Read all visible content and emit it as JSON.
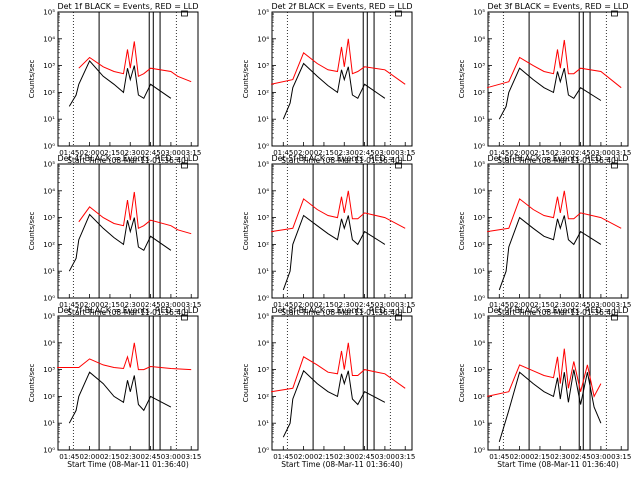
{
  "colors": {
    "events": "#000000",
    "lld": "#ff0000",
    "axis": "#000000",
    "background": "#ffffff"
  },
  "chart_data": [
    {
      "type": "line",
      "title": "Det 1f BLACK = Events, RED = LLD",
      "xlabel": "Start Time (08-Mar-11 01:36:40)",
      "ylabel": "Counts/sec",
      "yscale": "log",
      "ylim": [
        1,
        100000
      ],
      "xlim": [
        "01:36:40",
        "03:20:00"
      ],
      "x_tick_labels": [
        "01:45",
        "02:00",
        "02:15",
        "02:30",
        "02:45",
        "03:00",
        "03:15"
      ],
      "y_tick_labels": [
        "10^0",
        "10^1",
        "10^2",
        "10^3",
        "10^4",
        "10^5"
      ],
      "legend": "title text",
      "series": [
        {
          "name": "Events",
          "x": [
            "01:45",
            "01:50",
            "01:52",
            "02:00",
            "02:10",
            "02:18",
            "02:25",
            "02:28",
            "02:30",
            "02:33",
            "02:36",
            "02:40",
            "02:45",
            "03:00"
          ],
          "values": [
            30,
            80,
            200,
            1500,
            400,
            200,
            100,
            800,
            300,
            1000,
            80,
            60,
            200,
            60
          ]
        },
        {
          "name": "LLD",
          "x": [
            "01:52",
            "02:00",
            "02:10",
            "02:18",
            "02:25",
            "02:28",
            "02:30",
            "02:33",
            "02:36",
            "02:40",
            "02:45",
            "03:00",
            "03:05",
            "03:15"
          ],
          "values": [
            800,
            2000,
            900,
            600,
            500,
            4000,
            800,
            8000,
            400,
            500,
            800,
            600,
            400,
            250
          ]
        }
      ]
    },
    {
      "type": "line",
      "title": "Det 2f BLACK = Events, RED = LLD",
      "xlabel": "Start Time (08-Mar-11 01:36:40)",
      "ylabel": "Counts/sec",
      "yscale": "log",
      "ylim": [
        1,
        100000
      ],
      "xlim": [
        "01:36:40",
        "03:20:00"
      ],
      "x_tick_labels": [
        "01:45",
        "02:00",
        "02:15",
        "02:30",
        "02:45",
        "03:00",
        "03:15"
      ],
      "y_tick_labels": [
        "10^0",
        "10^1",
        "10^2",
        "10^3",
        "10^4",
        "10^5"
      ],
      "legend": "title text",
      "series": [
        {
          "name": "Events",
          "x": [
            "01:45",
            "01:50",
            "01:52",
            "02:00",
            "02:10",
            "02:18",
            "02:25",
            "02:28",
            "02:30",
            "02:33",
            "02:36",
            "02:40",
            "02:45",
            "03:00"
          ],
          "values": [
            10,
            40,
            150,
            1200,
            400,
            180,
            100,
            700,
            300,
            900,
            80,
            60,
            200,
            60
          ]
        },
        {
          "name": "LLD",
          "x": [
            "01:36",
            "01:52",
            "02:00",
            "02:10",
            "02:18",
            "02:25",
            "02:28",
            "02:30",
            "02:33",
            "02:36",
            "02:40",
            "02:45",
            "03:00",
            "03:15"
          ],
          "values": [
            200,
            300,
            3000,
            1200,
            700,
            600,
            5000,
            900,
            10000,
            500,
            600,
            900,
            700,
            200
          ]
        }
      ]
    },
    {
      "type": "line",
      "title": "Det 3f BLACK = Events, RED = LLD",
      "xlabel": "Start Time (08-Mar-11 01:36:40)",
      "ylabel": "Counts/sec",
      "yscale": "log",
      "ylim": [
        1,
        100000
      ],
      "xlim": [
        "01:36:40",
        "03:20:00"
      ],
      "x_tick_labels": [
        "01:45",
        "02:00",
        "02:15",
        "02:30",
        "02:45",
        "03:00",
        "03:15"
      ],
      "y_tick_labels": [
        "10^0",
        "10^1",
        "10^2",
        "10^3",
        "10^4",
        "10^5"
      ],
      "legend": "title text",
      "series": [
        {
          "name": "Events",
          "x": [
            "01:45",
            "01:50",
            "01:52",
            "02:00",
            "02:10",
            "02:18",
            "02:25",
            "02:28",
            "02:30",
            "02:33",
            "02:36",
            "02:40",
            "02:45",
            "03:00"
          ],
          "values": [
            10,
            30,
            100,
            800,
            300,
            150,
            100,
            600,
            250,
            800,
            80,
            60,
            150,
            50
          ]
        },
        {
          "name": "LLD",
          "x": [
            "01:36",
            "01:52",
            "02:00",
            "02:10",
            "02:18",
            "02:25",
            "02:28",
            "02:30",
            "02:33",
            "02:36",
            "02:40",
            "02:45",
            "03:00",
            "03:15"
          ],
          "values": [
            150,
            250,
            2000,
            1000,
            600,
            500,
            4000,
            800,
            9000,
            500,
            500,
            800,
            600,
            150
          ]
        }
      ]
    },
    {
      "type": "line",
      "title": "Det 4f BLACK = Events, RED = LLD",
      "xlabel": "Start Time (08-Mar-11 01:36:40)",
      "ylabel": "Counts/sec",
      "yscale": "log",
      "ylim": [
        1,
        100000
      ],
      "xlim": [
        "01:36:40",
        "03:20:00"
      ],
      "x_tick_labels": [
        "01:45",
        "02:00",
        "02:15",
        "02:30",
        "02:45",
        "03:00",
        "03:15"
      ],
      "y_tick_labels": [
        "10^0",
        "10^1",
        "10^2",
        "10^3",
        "10^4",
        "10^5"
      ],
      "legend": "title text",
      "series": [
        {
          "name": "Events",
          "x": [
            "01:45",
            "01:50",
            "01:52",
            "02:00",
            "02:10",
            "02:18",
            "02:25",
            "02:28",
            "02:30",
            "02:33",
            "02:36",
            "02:40",
            "02:45",
            "03:00"
          ],
          "values": [
            10,
            30,
            150,
            1300,
            400,
            180,
            100,
            800,
            300,
            1000,
            80,
            60,
            200,
            60
          ]
        },
        {
          "name": "LLD",
          "x": [
            "01:52",
            "02:00",
            "02:10",
            "02:18",
            "02:25",
            "02:28",
            "02:30",
            "02:33",
            "02:36",
            "02:40",
            "02:45",
            "03:00",
            "03:05",
            "03:15"
          ],
          "values": [
            700,
            2500,
            1000,
            600,
            500,
            4500,
            800,
            9000,
            400,
            500,
            800,
            500,
            350,
            250
          ]
        }
      ]
    },
    {
      "type": "line",
      "title": "Det 5f BLACK = Events, RED = LLD",
      "xlabel": "Start Time (08-Mar-11 01:36:40)",
      "ylabel": "Counts/sec",
      "yscale": "log",
      "ylim": [
        1,
        100000
      ],
      "xlim": [
        "01:36:40",
        "03:20:00"
      ],
      "x_tick_labels": [
        "01:45",
        "02:00",
        "02:15",
        "02:30",
        "02:45",
        "03:00",
        "03:15"
      ],
      "y_tick_labels": [
        "10^0",
        "10^1",
        "10^2",
        "10^3",
        "10^4",
        "10^5"
      ],
      "legend": "title text",
      "series": [
        {
          "name": "Events",
          "x": [
            "01:45",
            "01:50",
            "01:52",
            "02:00",
            "02:10",
            "02:18",
            "02:25",
            "02:28",
            "02:30",
            "02:33",
            "02:36",
            "02:40",
            "02:45",
            "03:00"
          ],
          "values": [
            2,
            10,
            100,
            1200,
            500,
            250,
            150,
            900,
            400,
            1200,
            150,
            100,
            300,
            100
          ]
        },
        {
          "name": "LLD",
          "x": [
            "01:36",
            "01:52",
            "02:00",
            "02:10",
            "02:18",
            "02:25",
            "02:28",
            "02:30",
            "02:33",
            "02:36",
            "02:40",
            "02:45",
            "03:00",
            "03:15"
          ],
          "values": [
            300,
            400,
            5000,
            2000,
            1200,
            1000,
            6000,
            1500,
            10000,
            900,
            900,
            1500,
            1000,
            400
          ]
        }
      ]
    },
    {
      "type": "line",
      "title": "Det 6f BLACK = Events, RED = LLD",
      "xlabel": "Start Time (08-Mar-11 01:36:40)",
      "ylabel": "Counts/sec",
      "yscale": "log",
      "ylim": [
        1,
        100000
      ],
      "xlim": [
        "01:36:40",
        "03:20:00"
      ],
      "x_tick_labels": [
        "01:45",
        "02:00",
        "02:15",
        "02:30",
        "02:45",
        "03:00",
        "03:15"
      ],
      "y_tick_labels": [
        "10^0",
        "10^1",
        "10^2",
        "10^3",
        "10^4",
        "10^5"
      ],
      "legend": "title text",
      "series": [
        {
          "name": "Events",
          "x": [
            "01:45",
            "01:50",
            "01:52",
            "02:00",
            "02:10",
            "02:18",
            "02:25",
            "02:28",
            "02:30",
            "02:33",
            "02:36",
            "02:40",
            "02:45",
            "03:00"
          ],
          "values": [
            2,
            10,
            80,
            1000,
            400,
            200,
            150,
            900,
            400,
            1200,
            150,
            100,
            300,
            100
          ]
        },
        {
          "name": "LLD",
          "x": [
            "01:36",
            "01:52",
            "02:00",
            "02:10",
            "02:18",
            "02:25",
            "02:28",
            "02:30",
            "02:33",
            "02:36",
            "02:40",
            "02:45",
            "03:00",
            "03:15"
          ],
          "values": [
            300,
            400,
            5000,
            2000,
            1200,
            1000,
            6000,
            1500,
            10000,
            900,
            900,
            1500,
            1000,
            400
          ]
        }
      ]
    },
    {
      "type": "line",
      "title": "Det 7f BLACK = Events, RED = LLD",
      "xlabel": "Start Time (08-Mar-11 01:36:40)",
      "ylabel": "Counts/sec",
      "yscale": "log",
      "ylim": [
        1,
        100000
      ],
      "xlim": [
        "01:36:40",
        "03:20:00"
      ],
      "x_tick_labels": [
        "01:45",
        "02:00",
        "02:15",
        "02:30",
        "02:45",
        "03:00",
        "03:15"
      ],
      "y_tick_labels": [
        "10^0",
        "10^1",
        "10^2",
        "10^3",
        "10^4",
        "10^5"
      ],
      "legend": "title text",
      "series": [
        {
          "name": "Events",
          "x": [
            "01:45",
            "01:50",
            "01:52",
            "02:00",
            "02:10",
            "02:18",
            "02:25",
            "02:28",
            "02:30",
            "02:33",
            "02:36",
            "02:40",
            "02:45",
            "03:00"
          ],
          "values": [
            10,
            30,
            100,
            800,
            300,
            100,
            60,
            400,
            150,
            600,
            50,
            30,
            100,
            40
          ]
        },
        {
          "name": "LLD",
          "x": [
            "01:36",
            "01:52",
            "02:00",
            "02:10",
            "02:18",
            "02:25",
            "02:28",
            "02:30",
            "02:33",
            "02:36",
            "02:40",
            "02:45",
            "03:00",
            "03:15"
          ],
          "values": [
            1200,
            1200,
            2500,
            1500,
            1200,
            1100,
            3000,
            1200,
            10000,
            1000,
            1000,
            1300,
            1100,
            1000
          ]
        }
      ]
    },
    {
      "type": "line",
      "title": "Det 8f BLACK = Events, RED = LLD",
      "xlabel": "Start Time (08-Mar-11 01:36:40)",
      "ylabel": "Counts/sec",
      "yscale": "log",
      "ylim": [
        1,
        100000
      ],
      "xlim": [
        "01:36:40",
        "03:20:00"
      ],
      "x_tick_labels": [
        "01:45",
        "02:00",
        "02:15",
        "02:30",
        "02:45",
        "03:00",
        "03:15"
      ],
      "y_tick_labels": [
        "10^0",
        "10^1",
        "10^2",
        "10^3",
        "10^4",
        "10^5"
      ],
      "legend": "title text",
      "series": [
        {
          "name": "Events",
          "x": [
            "01:45",
            "01:50",
            "01:52",
            "02:00",
            "02:10",
            "02:18",
            "02:25",
            "02:28",
            "02:30",
            "02:33",
            "02:36",
            "02:40",
            "02:45",
            "03:00"
          ],
          "values": [
            3,
            10,
            80,
            900,
            300,
            150,
            100,
            700,
            300,
            900,
            80,
            50,
            150,
            60
          ]
        },
        {
          "name": "LLD",
          "x": [
            "01:36",
            "01:52",
            "02:00",
            "02:10",
            "02:18",
            "02:25",
            "02:28",
            "02:30",
            "02:33",
            "02:36",
            "02:40",
            "02:45",
            "03:00",
            "03:15"
          ],
          "values": [
            150,
            200,
            3000,
            1500,
            800,
            700,
            5000,
            1000,
            10000,
            600,
            600,
            1000,
            700,
            200
          ]
        }
      ]
    },
    {
      "type": "line",
      "title": "Det 9f BLACK = Events, RED = LLD",
      "xlabel": "Start Time (08-Mar-11 01:36:40)",
      "ylabel": "Counts/sec",
      "yscale": "log",
      "ylim": [
        1,
        100000
      ],
      "xlim": [
        "01:36:40",
        "03:20:00"
      ],
      "x_tick_labels": [
        "01:45",
        "02:00",
        "02:15",
        "02:30",
        "02:45",
        "03:00",
        "03:15"
      ],
      "y_tick_labels": [
        "10^0",
        "10^1",
        "10^2",
        "10^3",
        "10^4",
        "10^5"
      ],
      "legend": "title text",
      "series": [
        {
          "name": "Events",
          "x": [
            "01:45",
            "01:52",
            "02:00",
            "02:10",
            "02:18",
            "02:25",
            "02:28",
            "02:30",
            "02:33",
            "02:36",
            "02:40",
            "02:45",
            "02:50",
            "02:55",
            "03:00"
          ],
          "values": [
            2,
            30,
            800,
            300,
            150,
            100,
            500,
            80,
            800,
            60,
            1000,
            50,
            800,
            40,
            10
          ]
        },
        {
          "name": "LLD",
          "x": [
            "01:36",
            "01:52",
            "02:00",
            "02:10",
            "02:18",
            "02:25",
            "02:28",
            "02:30",
            "02:33",
            "02:36",
            "02:40",
            "02:45",
            "02:50",
            "02:55",
            "03:00"
          ],
          "values": [
            100,
            150,
            1500,
            900,
            600,
            500,
            3000,
            300,
            6000,
            200,
            2000,
            150,
            1500,
            100,
            300
          ]
        }
      ]
    }
  ]
}
